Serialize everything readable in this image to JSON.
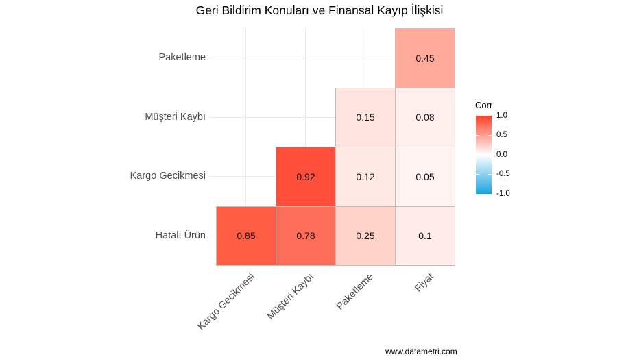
{
  "chart_data": {
    "type": "heatmap",
    "title": "Geri Bildirim Konuları ve Finansal Kayıp İlişkisi",
    "x_categories": [
      "Kargo Gecikmesi",
      "Müşteri Kaybı",
      "Paketleme",
      "Fiyat"
    ],
    "y_categories": [
      "Hatalı Ürün",
      "Kargo Gecikmesi",
      "Müşteri Kaybı",
      "Paketleme"
    ],
    "cells": [
      {
        "x": "Kargo Gecikmesi",
        "y": "Hatalı Ürün",
        "value": 0.85,
        "label": "0.85",
        "color": "#ff5e45"
      },
      {
        "x": "Müşteri Kaybı",
        "y": "Hatalı Ürün",
        "value": 0.78,
        "label": "0.78",
        "color": "#ff6e58"
      },
      {
        "x": "Paketleme",
        "y": "Hatalı Ürün",
        "value": 0.25,
        "label": "0.25",
        "color": "#ffd2ca"
      },
      {
        "x": "Fiyat",
        "y": "Hatalı Ürün",
        "value": 0.1,
        "label": "0.1",
        "color": "#ffece8"
      },
      {
        "x": "Müşteri Kaybı",
        "y": "Kargo Gecikmesi",
        "value": 0.92,
        "label": "0.92",
        "color": "#ff4f3a"
      },
      {
        "x": "Paketleme",
        "y": "Kargo Gecikmesi",
        "value": 0.12,
        "label": "0.12",
        "color": "#ffe9e5"
      },
      {
        "x": "Fiyat",
        "y": "Kargo Gecikmesi",
        "value": 0.05,
        "label": "0.05",
        "color": "#fff4f2"
      },
      {
        "x": "Paketleme",
        "y": "Müşteri Kaybı",
        "value": 0.15,
        "label": "0.15",
        "color": "#ffe4df"
      },
      {
        "x": "Fiyat",
        "y": "Müşteri Kaybı",
        "value": 0.08,
        "label": "0.08",
        "color": "#ffefec"
      },
      {
        "x": "Fiyat",
        "y": "Paketleme",
        "value": 0.45,
        "label": "0.45",
        "color": "#ffab9c"
      }
    ],
    "legend": {
      "title": "Corr",
      "position": "right",
      "range": [
        -1.0,
        1.0
      ],
      "ticks": [
        "1.0",
        "0.5",
        "0.0",
        "-0.5",
        "-1.0"
      ],
      "colors": {
        "high": "#ff4127",
        "mid": "#ffffff",
        "low": "#1aa3e0"
      }
    },
    "grid": true,
    "caption": "www.datametri.com"
  },
  "title": "Geri Bildirim Konuları ve Finansal Kayıp İlişkisi",
  "caption": "www.datametri.com"
}
